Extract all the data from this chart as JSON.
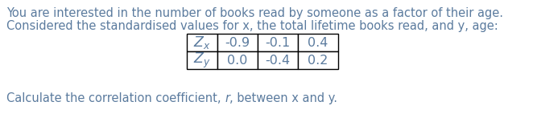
{
  "line1": "You are interested in the number of books read by someone as a factor of their age.",
  "line2": "Considered the standardised values for x, the total lifetime books read, and y, age:",
  "bottom_full_text": "Calculate the correlation coefficient, ​, between x and y.",
  "bottom_plain1": "Calculate the correlation coefficient, ",
  "bottom_italic": "r",
  "bottom_plain2": ", between x and y.",
  "table_row1_values": [
    "-0.9",
    "-0.1",
    "0.4"
  ],
  "table_row2_values": [
    "0.0",
    "-0.4",
    "0.2"
  ],
  "text_color": "#5b7b9e",
  "background_color": "#ffffff",
  "font_size": 10.5,
  "table_font_size": 11.5,
  "table_label_fontsize": 12.5
}
